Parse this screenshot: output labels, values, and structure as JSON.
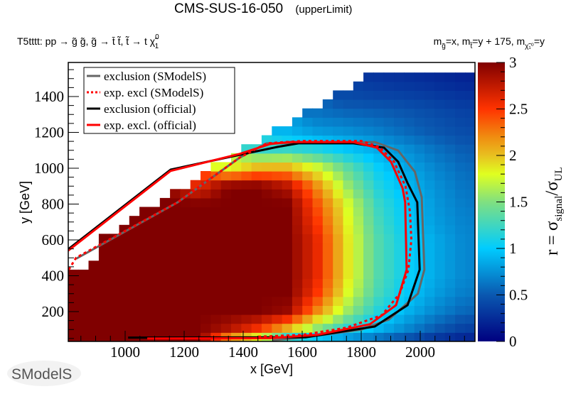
{
  "header": {
    "title": "CMS-SUS-16-050",
    "subtitle": "(upperLimit)",
    "process": "T5tttt: pp → g̃ g̃, g̃ → t̄ t̃, t̃ → t χ̃",
    "process_sub": "1",
    "process_sup": "0",
    "mass_parts": [
      {
        "text": "m",
        "sub": "g̃"
      },
      {
        "text": "=x, m",
        "sub": "t̃"
      },
      {
        "text": "=y + 175, m",
        "sub": "χ̃₁⁰"
      },
      {
        "text": "=y",
        "sub": ""
      }
    ]
  },
  "logo": {
    "text": "SModelS"
  },
  "chart_data": {
    "type": "heatmap",
    "xlabel": "x [GeV]",
    "ylabel": "y [GeV]",
    "zlabel_main": "r = σ",
    "zlabel_sub1": "signal",
    "zlabel_mid": "/σ",
    "zlabel_sub2": "UL",
    "xlim": [
      807,
      2186
    ],
    "ylim": [
      34,
      1590
    ],
    "zlim": [
      0,
      3
    ],
    "xticks": [
      1000,
      1200,
      1400,
      1600,
      1800,
      2000
    ],
    "yticks": [
      200,
      400,
      600,
      800,
      1000,
      1200,
      1400
    ],
    "zticks": [
      "0",
      "0.5",
      "1",
      "1.5",
      "2",
      "2.5",
      "3"
    ],
    "colormap": [
      [
        0,
        "#000080"
      ],
      [
        0.5,
        "#0a58b0"
      ],
      [
        1.0,
        "#00ccff"
      ],
      [
        1.5,
        "#80e080"
      ],
      [
        1.8,
        "#e0ff20"
      ],
      [
        2.0,
        "#e8c020"
      ],
      [
        2.2,
        "#f08c10"
      ],
      [
        2.5,
        "#ff3300"
      ],
      [
        3.0,
        "#800000"
      ]
    ],
    "x": [
      850,
      950,
      1050,
      1150,
      1250,
      1350,
      1450,
      1550,
      1650,
      1750,
      1850,
      1950,
      2050,
      2150
    ],
    "y": [
      50,
      100,
      200,
      300,
      400,
      500,
      600,
      700,
      800,
      900,
      1000,
      1100,
      1200,
      1300,
      1400,
      1500
    ],
    "z": [
      [
        3,
        3,
        3,
        3,
        3,
        2.1,
        1.7,
        1.05,
        0.9,
        0.75,
        0.6,
        0.45,
        0.3,
        0.2
      ],
      [
        3,
        3,
        3,
        3,
        3,
        2.8,
        2.5,
        2.0,
        1.5,
        1.15,
        0.9,
        0.7,
        0.5,
        0.35
      ],
      [
        3,
        3,
        3,
        3,
        3,
        3,
        3,
        2.9,
        2.2,
        1.6,
        1.15,
        0.9,
        0.7,
        0.55
      ],
      [
        3,
        3,
        3,
        3,
        3,
        3,
        3,
        3,
        2.5,
        1.8,
        1.3,
        1.0,
        0.8,
        0.65
      ],
      [
        3,
        3,
        3,
        3,
        3,
        3,
        3,
        3,
        2.6,
        1.9,
        1.35,
        1.05,
        0.85,
        0.7
      ],
      [
        null,
        3,
        3,
        3,
        3,
        3,
        3,
        3,
        2.6,
        1.9,
        1.35,
        1.05,
        0.85,
        0.7
      ],
      [
        null,
        3,
        3,
        3,
        3,
        3,
        3,
        3,
        2.6,
        1.9,
        1.35,
        1.05,
        0.85,
        0.7
      ],
      [
        null,
        null,
        3,
        3,
        3,
        3,
        3,
        3,
        2.5,
        1.85,
        1.3,
        1.0,
        0.8,
        0.68
      ],
      [
        null,
        null,
        null,
        3,
        3,
        3,
        3,
        3,
        2.4,
        1.8,
        1.25,
        0.98,
        0.78,
        0.65
      ],
      [
        null,
        null,
        null,
        null,
        2.6,
        3,
        3,
        2.8,
        2.2,
        1.6,
        1.15,
        0.92,
        0.75,
        0.62
      ],
      [
        null,
        null,
        null,
        null,
        null,
        1.8,
        2.1,
        2.1,
        1.8,
        1.4,
        1.05,
        0.85,
        0.7,
        0.58
      ],
      [
        null,
        null,
        null,
        null,
        null,
        null,
        1.2,
        1.25,
        1.15,
        1.0,
        0.88,
        0.75,
        0.62,
        0.52
      ],
      [
        null,
        null,
        null,
        null,
        null,
        null,
        null,
        0.9,
        0.8,
        0.75,
        0.68,
        0.58,
        0.5,
        0.43
      ],
      [
        null,
        null,
        null,
        null,
        null,
        null,
        null,
        null,
        0.62,
        0.58,
        0.55,
        0.5,
        0.44,
        0.38
      ],
      [
        null,
        null,
        null,
        null,
        null,
        null,
        null,
        null,
        null,
        0.42,
        0.4,
        0.38,
        0.34,
        0.3
      ],
      [
        null,
        null,
        null,
        null,
        null,
        null,
        null,
        null,
        null,
        null,
        0.3,
        0.27,
        0.24,
        0.2
      ]
    ],
    "legend_position": "top-left",
    "series": [
      {
        "name": "exclusion (SModelS)",
        "color": "#666666",
        "style": "solid",
        "points": [
          [
            834,
            495
          ],
          [
            1178,
            810
          ],
          [
            1388,
            1059
          ],
          [
            1480,
            1139
          ],
          [
            1846,
            1146
          ],
          [
            1925,
            1099
          ],
          [
            1982,
            980
          ],
          [
            2005,
            838
          ],
          [
            2014,
            434
          ],
          [
            1992,
            300
          ],
          [
            1894,
            156
          ],
          [
            1800,
            100
          ],
          [
            1612,
            57
          ],
          [
            1500,
            40
          ]
        ]
      },
      {
        "name": "exclusion (official)",
        "color": "#000000",
        "style": "solid",
        "points": [
          [
            807,
            548
          ],
          [
            1154,
            992
          ],
          [
            1388,
            1075
          ],
          [
            1516,
            1119
          ],
          [
            1588,
            1139
          ],
          [
            1774,
            1139
          ],
          [
            1877,
            1115
          ],
          [
            1925,
            1036
          ],
          [
            1957,
            917
          ],
          [
            1990,
            810
          ],
          [
            1998,
            434
          ],
          [
            1957,
            236
          ],
          [
            1846,
            117
          ],
          [
            1612,
            57
          ],
          [
            1010,
            55
          ]
        ]
      },
      {
        "name": "exp. excl. (official)",
        "color": "#ff0000",
        "style": "solid",
        "points": [
          [
            807,
            540
          ],
          [
            1154,
            985
          ],
          [
            1388,
            1080
          ],
          [
            1491,
            1135
          ],
          [
            1560,
            1146
          ],
          [
            1773,
            1146
          ],
          [
            1853,
            1115
          ],
          [
            1901,
            1036
          ],
          [
            1940,
            890
          ],
          [
            1949,
            810
          ],
          [
            1954,
            434
          ],
          [
            1918,
            236
          ],
          [
            1829,
            129
          ],
          [
            1650,
            70
          ],
          [
            1491,
            52
          ],
          [
            1075,
            50
          ]
        ]
      },
      {
        "name": "exp. excl (SModelS)",
        "color": "#ff0000",
        "style": "dotted",
        "points": [
          [
            809,
            434
          ],
          [
            834,
            501
          ],
          [
            1178,
            810
          ],
          [
            1388,
            1059
          ],
          [
            1480,
            1139
          ],
          [
            1600,
            1152
          ],
          [
            1800,
            1152
          ],
          [
            1860,
            1120
          ],
          [
            1910,
            1040
          ],
          [
            1950,
            900
          ],
          [
            1965,
            760
          ],
          [
            1970,
            600
          ],
          [
            1960,
            434
          ],
          [
            1930,
            300
          ],
          [
            1870,
            180
          ],
          [
            1750,
            110
          ],
          [
            1600,
            70
          ],
          [
            1450,
            60
          ]
        ]
      }
    ],
    "legend": [
      {
        "label": "exclusion (SModelS)",
        "color": "#666666",
        "style": "solid"
      },
      {
        "label": "exp. excl (SModelS)",
        "color": "#ff0000",
        "style": "dotted"
      },
      {
        "label": "exclusion (official)",
        "color": "#000000",
        "style": "solid"
      },
      {
        "label": "exp. excl. (official)",
        "color": "#ff0000",
        "style": "solid"
      }
    ]
  }
}
